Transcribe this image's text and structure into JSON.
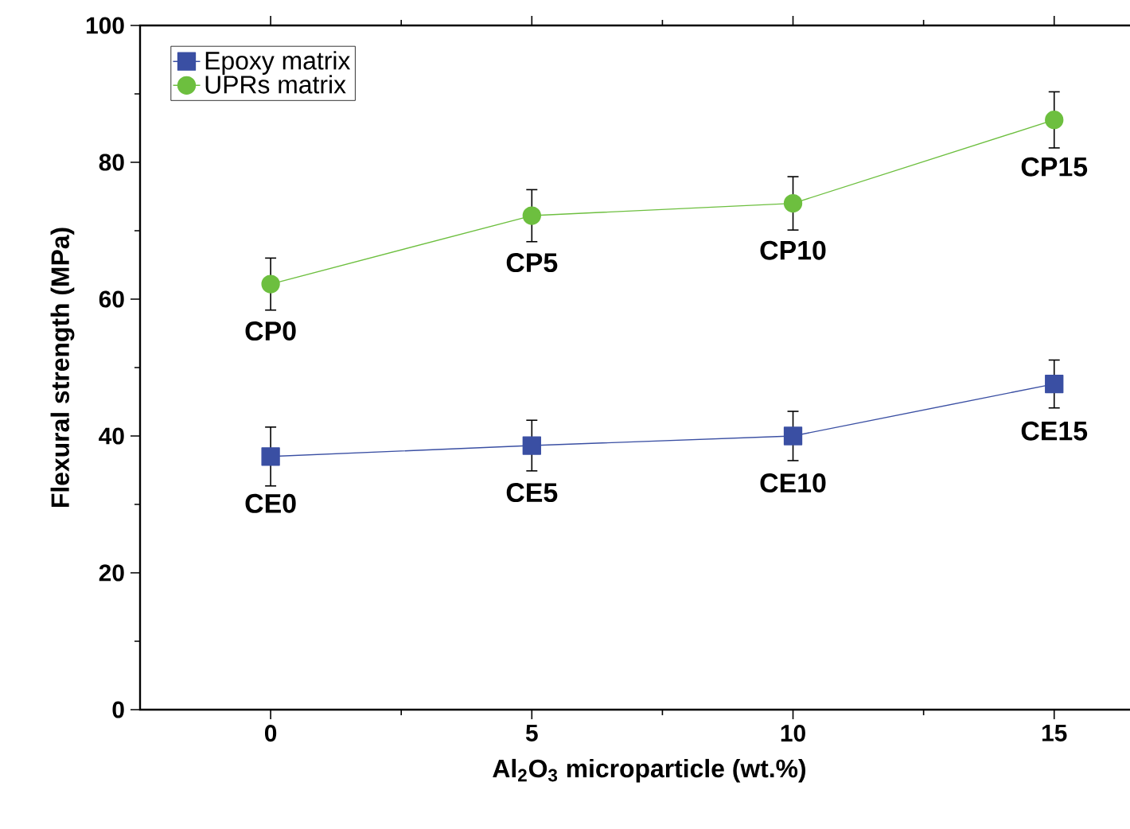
{
  "chart_data": {
    "type": "line",
    "xlabel": "Al$_{2}$O$_{3}$ microparticle (wt.%)",
    "ylabel": "Flexural strength (MPa)",
    "x": [
      0,
      5,
      10,
      15
    ],
    "series": [
      {
        "name": "Epoxy matrix",
        "color": "#3a4fa3",
        "marker": "square",
        "values": [
          37,
          38.6,
          40,
          47.6
        ],
        "errors": [
          4.3,
          3.7,
          3.6,
          3.5
        ]
      },
      {
        "name": "UPRs matrix",
        "color": "#6dbf3f",
        "marker": "circle",
        "values": [
          62.2,
          72.2,
          74,
          86.2
        ],
        "errors": [
          3.8,
          3.8,
          3.9,
          4.1
        ]
      }
    ],
    "xlim": [
      -2.5,
      17
    ],
    "ylim": [
      0,
      100
    ],
    "xticks": [
      0,
      5,
      10,
      15
    ],
    "yticks": [
      0,
      20,
      40,
      60,
      80,
      100
    ],
    "legend": "top left",
    "grid": false,
    "annotations": [
      {
        "text": "CE0",
        "x": 0,
        "y": 37
      },
      {
        "text": "CE5",
        "x": 5,
        "y": 38.6
      },
      {
        "text": "CE10",
        "x": 10,
        "y": 40
      },
      {
        "text": "CE15",
        "x": 15,
        "y": 47.6
      },
      {
        "text": "CP0",
        "x": 0,
        "y": 62.2
      },
      {
        "text": "CP5",
        "x": 5,
        "y": 72.2
      },
      {
        "text": "CP10",
        "x": 10,
        "y": 74
      },
      {
        "text": "CP15",
        "x": 15,
        "y": 86.2
      }
    ]
  }
}
